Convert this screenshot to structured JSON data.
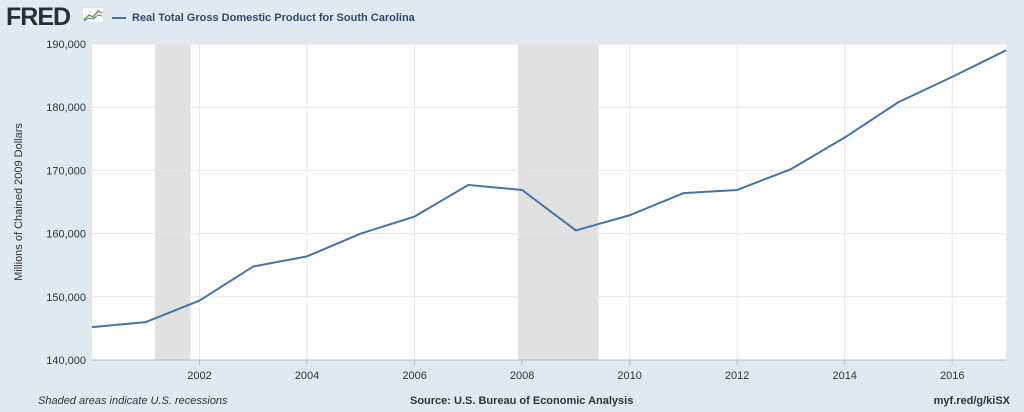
{
  "header": {
    "logo_text": "FRED",
    "logo_icon": "line-graph-icon",
    "legend_label": "Real Total Gross Domestic Product for South Carolina"
  },
  "footer": {
    "recessions_note": "Shaded areas indicate U.S. recessions",
    "source": "Source: U.S. Bureau of Economic Analysis",
    "short_url": "myf.red/g/kiSX"
  },
  "colors": {
    "background": "#e1e9f0",
    "plot_background": "#ffffff",
    "series": "#4572a7",
    "recession": "#e1e1e1",
    "grid": "#e6e6e6"
  },
  "chart_data": {
    "type": "line",
    "title": "",
    "xlabel": "",
    "ylabel": "Millions of Chained 2009 Dollars",
    "xlim": [
      2000.0,
      2017.0
    ],
    "ylim": [
      140000,
      190000
    ],
    "grid": true,
    "legend_position": "top-left",
    "x_ticks": [
      2002,
      2004,
      2006,
      2008,
      2010,
      2012,
      2014,
      2016
    ],
    "y_ticks": [
      140000,
      150000,
      160000,
      170000,
      180000,
      190000
    ],
    "y_tick_labels": [
      "140,000",
      "150,000",
      "160,000",
      "170,000",
      "180,000",
      "190,000"
    ],
    "recessions": [
      {
        "start": 2001.17,
        "end": 2001.83
      },
      {
        "start": 2007.92,
        "end": 2009.42
      }
    ],
    "series": [
      {
        "name": "Real Total Gross Domestic Product for South Carolina",
        "x": [
          2000,
          2001,
          2002,
          2003,
          2004,
          2005,
          2006,
          2007,
          2008,
          2009,
          2010,
          2011,
          2012,
          2013,
          2014,
          2015,
          2016,
          2017
        ],
        "values": [
          145200,
          146000,
          149400,
          154800,
          156400,
          160000,
          162700,
          167700,
          166900,
          160500,
          162900,
          166400,
          166900,
          170200,
          175200,
          180800,
          184800,
          189000
        ]
      }
    ]
  }
}
